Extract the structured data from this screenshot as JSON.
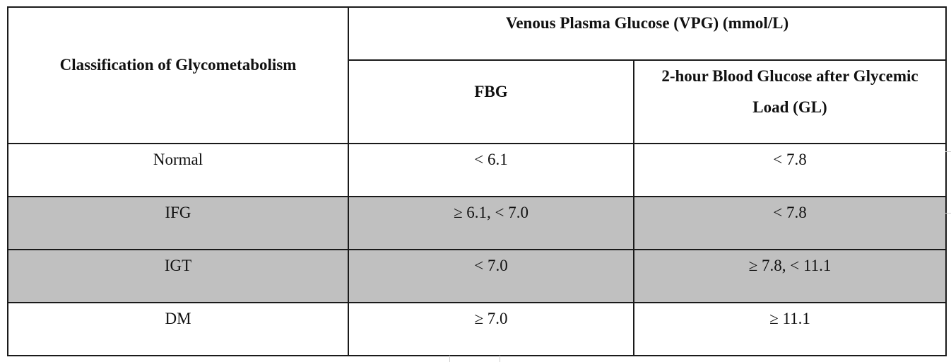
{
  "table": {
    "header": {
      "classification": "Classification of Glycometabolism",
      "group": "Venous Plasma Glucose (VPG) (mmol/L)",
      "fbg": "FBG",
      "gl": "2-hour Blood Glucose after Glycemic Load (GL)"
    },
    "rows": [
      {
        "label": "Normal",
        "fbg": "< 6.1",
        "gl": "< 7.8"
      },
      {
        "label": "IFG",
        "fbg": "≥ 6.1, < 7.0",
        "gl": "< 7.8"
      },
      {
        "label": "IGT",
        "fbg": "< 7.0",
        "gl": "≥ 7.8, < 11.1"
      },
      {
        "label": "DM",
        "fbg": "≥ 7.0",
        "gl": "≥ 11.1"
      }
    ],
    "shade_color": "#c0c0c0"
  }
}
